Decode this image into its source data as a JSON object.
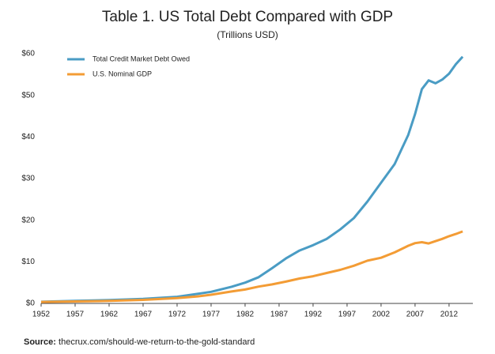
{
  "chart_data": {
    "type": "line",
    "title": "Table 1. US Total Debt Compared with GDP",
    "subtitle": "(Trillions USD)",
    "source_label": "Source:",
    "source_text": "thecrux.com/should-we-return-to-the-gold-standard",
    "x": [
      1952,
      1957,
      1962,
      1967,
      1972,
      1975,
      1977,
      1980,
      1982,
      1984,
      1986,
      1988,
      1990,
      1992,
      1994,
      1996,
      1998,
      2000,
      2002,
      2004,
      2006,
      2007,
      2008,
      2009,
      2010,
      2011,
      2012,
      2013,
      2014
    ],
    "series": [
      {
        "name": "Total Credit Market Debt Owed",
        "color": "#4a9cc4",
        "values": [
          0.4,
          0.6,
          0.8,
          1.1,
          1.6,
          2.3,
          2.8,
          4.0,
          5.0,
          6.3,
          8.5,
          10.8,
          12.7,
          14.0,
          15.5,
          17.8,
          20.5,
          24.5,
          29.0,
          33.5,
          40.5,
          45.5,
          51.5,
          53.6,
          52.9,
          53.8,
          55.2,
          57.5,
          59.3
        ]
      },
      {
        "name": "U.S. Nominal GDP",
        "color": "#f39c35",
        "values": [
          0.36,
          0.47,
          0.6,
          0.86,
          1.28,
          1.69,
          2.09,
          2.86,
          3.34,
          4.04,
          4.58,
          5.24,
          5.98,
          6.54,
          7.31,
          8.07,
          9.06,
          10.28,
          10.98,
          12.27,
          13.86,
          14.48,
          14.72,
          14.42,
          14.96,
          15.52,
          16.16,
          16.69,
          17.3
        ]
      }
    ],
    "xlim": [
      1952,
      2015.5
    ],
    "xticks": [
      1952,
      1957,
      1962,
      1967,
      1972,
      1977,
      1982,
      1987,
      1992,
      1997,
      2002,
      2007,
      2012
    ],
    "ylim": [
      0,
      60
    ],
    "yticks": [
      {
        "value": 0,
        "label": "$0"
      },
      {
        "value": 10,
        "label": "$10"
      },
      {
        "value": 20,
        "label": "$20"
      },
      {
        "value": 30,
        "label": "$30"
      },
      {
        "value": 40,
        "label": "$40"
      },
      {
        "value": 50,
        "label": "$50"
      },
      {
        "value": 60,
        "label": "$60"
      }
    ],
    "legend": "top-left"
  }
}
